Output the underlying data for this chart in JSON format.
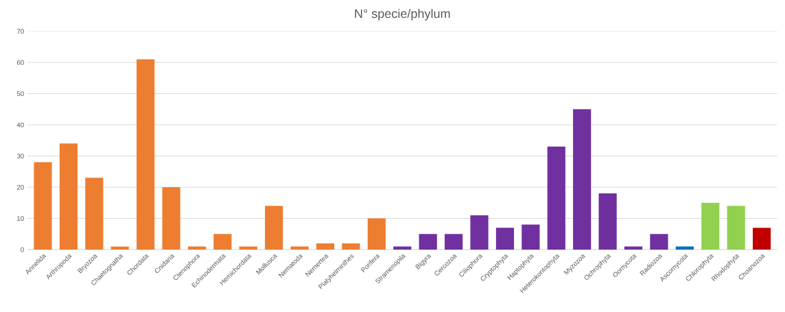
{
  "chart_data": {
    "type": "bar",
    "title": "N° specie/phylum",
    "categories": [
      "Annelida",
      "Arthropoda",
      "Bryozoa",
      "Chaetognatha",
      "Chordata",
      "Cnidaria",
      "Ctenophora",
      "Echinodermata",
      "Hemichordata",
      "Mollusca",
      "Nematoda",
      "Nemertea",
      "Platyhelminthes",
      "Porifera",
      "Stramenopila",
      "Bigyra",
      "Cercozoa",
      "Ciliophora",
      "Cryptophyta",
      "Haptophyta",
      "Heterokontophyta",
      "Myzozoa",
      "Ochrophyta",
      "Oomycota",
      "Radiozoa",
      "Ascomycota",
      "Chlorophyta",
      "Rhodophyta",
      "Choanozoa"
    ],
    "values": [
      28,
      34,
      23,
      1,
      61,
      20,
      1,
      5,
      1,
      14,
      1,
      2,
      2,
      10,
      1,
      5,
      5,
      11,
      7,
      8,
      33,
      45,
      18,
      1,
      5,
      1,
      15,
      14,
      7
    ],
    "colors": [
      "#ed7d31",
      "#ed7d31",
      "#ed7d31",
      "#ed7d31",
      "#ed7d31",
      "#ed7d31",
      "#ed7d31",
      "#ed7d31",
      "#ed7d31",
      "#ed7d31",
      "#ed7d31",
      "#ed7d31",
      "#ed7d31",
      "#ed7d31",
      "#7030a0",
      "#7030a0",
      "#7030a0",
      "#7030a0",
      "#7030a0",
      "#7030a0",
      "#7030a0",
      "#7030a0",
      "#7030a0",
      "#7030a0",
      "#7030a0",
      "#0070c0",
      "#92d050",
      "#92d050",
      "#c00000"
    ],
    "ylim": [
      0,
      70
    ],
    "yticks": [
      0,
      10,
      20,
      30,
      40,
      50,
      60,
      70
    ],
    "grid": "y"
  }
}
